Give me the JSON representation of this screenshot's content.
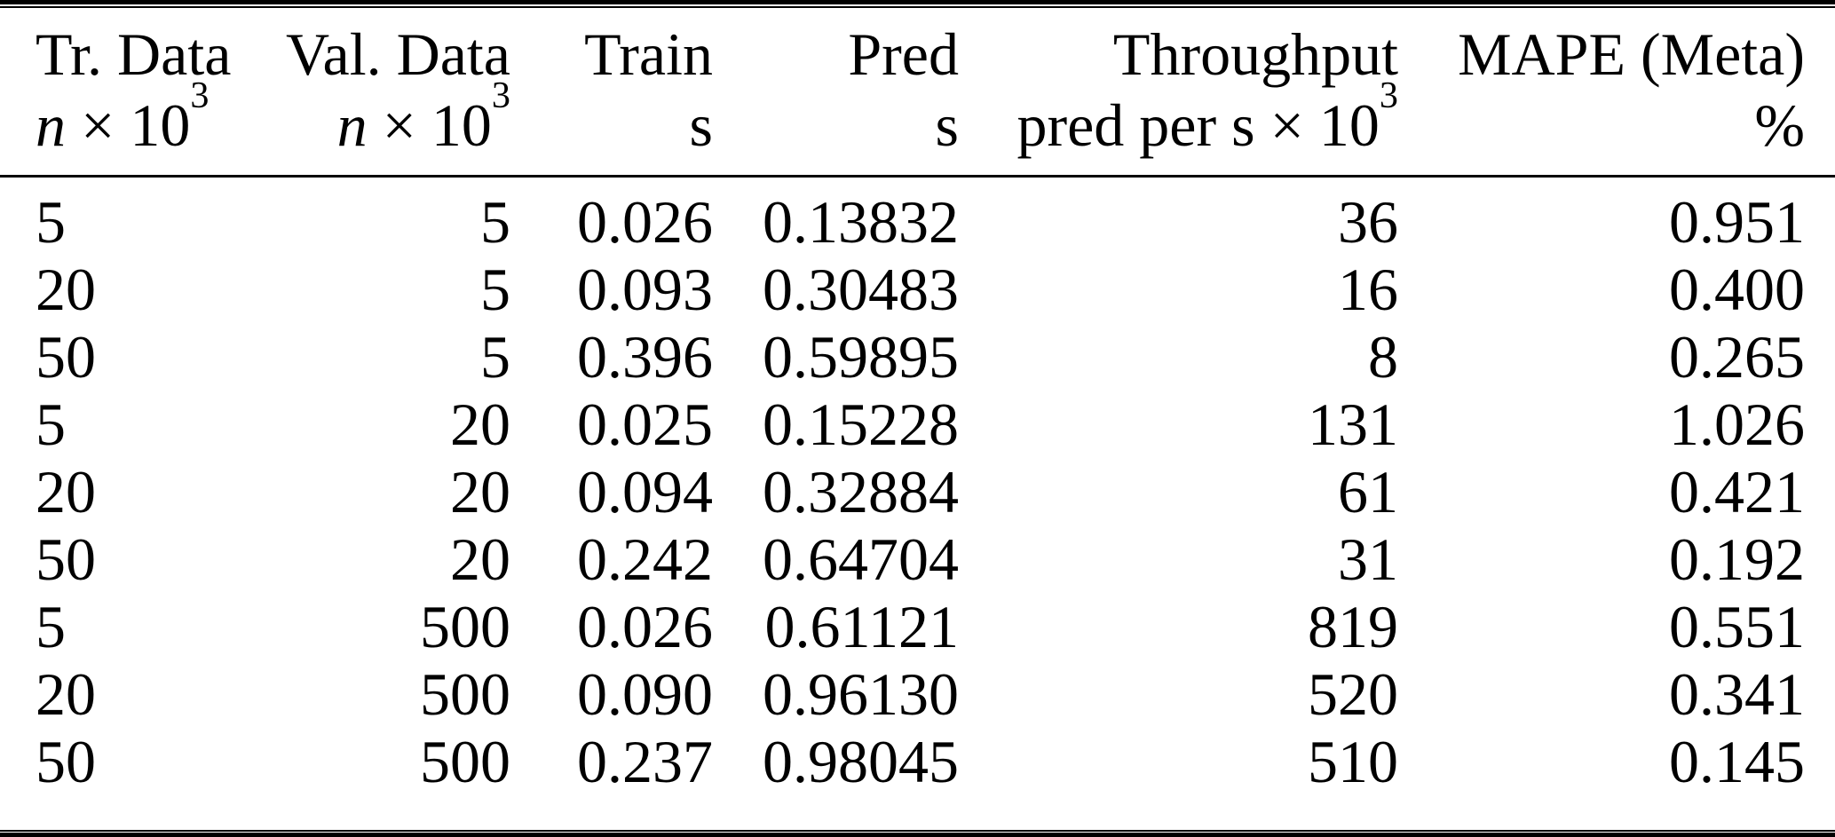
{
  "table": {
    "columns": [
      {
        "title": "Tr. Data",
        "unit_var": "n",
        "unit_times": " × 10",
        "unit_exp": "3"
      },
      {
        "title": "Val. Data",
        "unit_var": "n",
        "unit_times": " × 10",
        "unit_exp": "3"
      },
      {
        "title": "Train",
        "unit": "s"
      },
      {
        "title": "Pred",
        "unit": "s"
      },
      {
        "title": "Throughput",
        "unit": "pred per s × 10",
        "unit_exp": "3"
      },
      {
        "title": "MAPE (Meta)",
        "unit": "%"
      }
    ],
    "rows": [
      [
        "5",
        "5",
        "0.026",
        "0.13832",
        "36",
        "0.951"
      ],
      [
        "20",
        "5",
        "0.093",
        "0.30483",
        "16",
        "0.400"
      ],
      [
        "50",
        "5",
        "0.396",
        "0.59895",
        "8",
        "0.265"
      ],
      [
        "5",
        "20",
        "0.025",
        "0.15228",
        "131",
        "1.026"
      ],
      [
        "20",
        "20",
        "0.094",
        "0.32884",
        "61",
        "0.421"
      ],
      [
        "50",
        "20",
        "0.242",
        "0.64704",
        "31",
        "0.192"
      ],
      [
        "5",
        "500",
        "0.026",
        "0.61121",
        "819",
        "0.551"
      ],
      [
        "20",
        "500",
        "0.090",
        "0.96130",
        "520",
        "0.341"
      ],
      [
        "50",
        "500",
        "0.237",
        "0.98045",
        "510",
        "0.145"
      ]
    ],
    "colors": {
      "text": "#000000",
      "background": "#ffffff",
      "rule": "#000000"
    }
  }
}
